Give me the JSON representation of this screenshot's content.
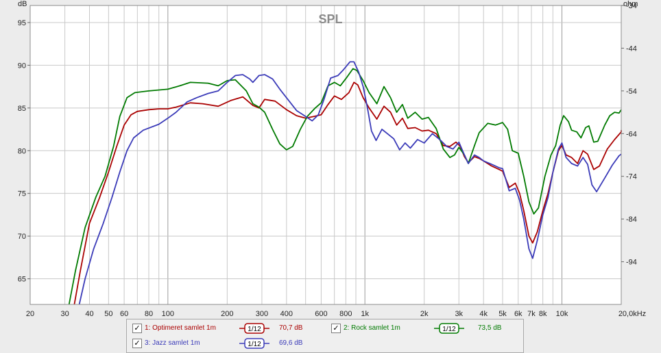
{
  "colors": {
    "background": "#ececec",
    "plot_bg": "#ffffff",
    "grid": "#c8c8c8",
    "grid_major": "#9a9a9a",
    "text": "#222222",
    "title": "#8a8a8a"
  },
  "legend": {
    "items": [
      {
        "checked": true,
        "label": "1: Optimeret samlet 1m",
        "smoothing": "1/12",
        "value": "70,7 dB",
        "color": "#aa0000"
      },
      {
        "checked": true,
        "label": "2: Rock samlet 1m",
        "smoothing": "1/12",
        "value": "73,5 dB",
        "color": "#007a00"
      },
      {
        "checked": true,
        "label": "3: Jazz samlet 1m",
        "smoothing": "1/12",
        "value": "69,6 dB",
        "color": "#3a3ab8"
      }
    ],
    "check_mark": "✓"
  },
  "chart_data": {
    "type": "line",
    "title": "SPL",
    "ylabel": "dB",
    "y2label": "ohm",
    "xscale": "log",
    "xlim": [
      20,
      20000
    ],
    "ylim": [
      62,
      97
    ],
    "y2lim": [
      -104,
      -34
    ],
    "x_ticks": [
      {
        "v": 20,
        "label": "20"
      },
      {
        "v": 30,
        "label": "30"
      },
      {
        "v": 40,
        "label": "40"
      },
      {
        "v": 50,
        "label": "50"
      },
      {
        "v": 60,
        "label": "60"
      },
      {
        "v": 80,
        "label": "80"
      },
      {
        "v": 100,
        "label": "100"
      },
      {
        "v": 200,
        "label": "200"
      },
      {
        "v": 300,
        "label": "300"
      },
      {
        "v": 400,
        "label": "400"
      },
      {
        "v": 600,
        "label": "600"
      },
      {
        "v": 800,
        "label": "800"
      },
      {
        "v": 1000,
        "label": "1k"
      },
      {
        "v": 2000,
        "label": "2k"
      },
      {
        "v": 3000,
        "label": "3k"
      },
      {
        "v": 4000,
        "label": "4k"
      },
      {
        "v": 5000,
        "label": "5k"
      },
      {
        "v": 6000,
        "label": "6k"
      },
      {
        "v": 7000,
        "label": "7k"
      },
      {
        "v": 8000,
        "label": "8k"
      },
      {
        "v": 10000,
        "label": "10k"
      },
      {
        "v": 20000,
        "label": "20,0kHz"
      }
    ],
    "x_minor_grid": [
      70,
      90,
      500,
      700,
      900,
      9000
    ],
    "y_ticks": [
      {
        "v": 95,
        "label": "95"
      },
      {
        "v": 90,
        "label": "90"
      },
      {
        "v": 85,
        "label": "85"
      },
      {
        "v": 80,
        "label": "80"
      },
      {
        "v": 75,
        "label": "75"
      },
      {
        "v": 70,
        "label": "70"
      },
      {
        "v": 65,
        "label": "65"
      }
    ],
    "y2_ticks": [
      {
        "v": -34,
        "label": "-34"
      },
      {
        "v": -44,
        "label": "-44"
      },
      {
        "v": -54,
        "label": "-54"
      },
      {
        "v": -64,
        "label": "-64"
      },
      {
        "v": -74,
        "label": "-74"
      },
      {
        "v": -84,
        "label": "-84"
      },
      {
        "v": -94,
        "label": "-94"
      }
    ],
    "grid": true,
    "series": [
      {
        "name": "1: Optimeret samlet 1m",
        "color": "#aa0000",
        "points": [
          [
            33.5,
            62
          ],
          [
            36,
            66
          ],
          [
            40,
            71.5
          ],
          [
            45,
            74.5
          ],
          [
            50,
            77.5
          ],
          [
            55,
            80.5
          ],
          [
            60,
            83
          ],
          [
            65,
            84.2
          ],
          [
            70,
            84.6
          ],
          [
            80,
            84.8
          ],
          [
            90,
            84.9
          ],
          [
            100,
            84.9
          ],
          [
            110,
            85.1
          ],
          [
            130,
            85.6
          ],
          [
            150,
            85.5
          ],
          [
            180,
            85.2
          ],
          [
            210,
            85.9
          ],
          [
            240,
            86.3
          ],
          [
            270,
            85.3
          ],
          [
            290,
            85
          ],
          [
            310,
            86
          ],
          [
            350,
            85.8
          ],
          [
            400,
            84.8
          ],
          [
            450,
            84.1
          ],
          [
            500,
            83.8
          ],
          [
            550,
            84
          ],
          [
            600,
            84.2
          ],
          [
            650,
            85.4
          ],
          [
            700,
            86.4
          ],
          [
            760,
            86
          ],
          [
            830,
            86.8
          ],
          [
            880,
            88
          ],
          [
            920,
            87.7
          ],
          [
            980,
            86.2
          ],
          [
            1050,
            85
          ],
          [
            1150,
            83.7
          ],
          [
            1250,
            85.2
          ],
          [
            1350,
            84.5
          ],
          [
            1450,
            83
          ],
          [
            1550,
            83.8
          ],
          [
            1650,
            82.6
          ],
          [
            1800,
            82.7
          ],
          [
            1950,
            82.3
          ],
          [
            2100,
            82.4
          ],
          [
            2300,
            82
          ],
          [
            2500,
            80.6
          ],
          [
            2700,
            80.5
          ],
          [
            2900,
            81
          ],
          [
            3050,
            80.5
          ],
          [
            3200,
            79.3
          ],
          [
            3350,
            78.6
          ],
          [
            3600,
            79.3
          ],
          [
            3800,
            79.1
          ],
          [
            4000,
            78.8
          ],
          [
            4400,
            78.2
          ],
          [
            4800,
            77.8
          ],
          [
            5000,
            77.6
          ],
          [
            5400,
            75.7
          ],
          [
            5800,
            76.2
          ],
          [
            6100,
            75
          ],
          [
            6400,
            73
          ],
          [
            6800,
            70
          ],
          [
            7100,
            69.2
          ],
          [
            7500,
            70.5
          ],
          [
            8000,
            73
          ],
          [
            8500,
            75
          ],
          [
            9000,
            77.5
          ],
          [
            9600,
            80
          ],
          [
            10000,
            80.6
          ],
          [
            10500,
            79.5
          ],
          [
            11200,
            79.2
          ],
          [
            12000,
            78.5
          ],
          [
            12800,
            80
          ],
          [
            13500,
            79.6
          ],
          [
            14500,
            77.8
          ],
          [
            15500,
            78.2
          ],
          [
            17000,
            80.2
          ],
          [
            18500,
            81.3
          ],
          [
            20000,
            82.2
          ],
          [
            20500,
            82.4
          ]
        ]
      },
      {
        "name": "2: Rock samlet 1m",
        "color": "#007a00",
        "points": [
          [
            31.5,
            62
          ],
          [
            34,
            66
          ],
          [
            38,
            71
          ],
          [
            43,
            74.5
          ],
          [
            48,
            77
          ],
          [
            53,
            80.5
          ],
          [
            57,
            84
          ],
          [
            62,
            86.2
          ],
          [
            68,
            86.8
          ],
          [
            80,
            87
          ],
          [
            100,
            87.2
          ],
          [
            115,
            87.6
          ],
          [
            130,
            88
          ],
          [
            160,
            87.9
          ],
          [
            180,
            87.6
          ],
          [
            200,
            88.2
          ],
          [
            220,
            88.3
          ],
          [
            250,
            87
          ],
          [
            270,
            85.5
          ],
          [
            290,
            85.1
          ],
          [
            310,
            84.5
          ],
          [
            340,
            82.5
          ],
          [
            370,
            80.8
          ],
          [
            400,
            80.1
          ],
          [
            430,
            80.5
          ],
          [
            470,
            82.5
          ],
          [
            510,
            84
          ],
          [
            560,
            85
          ],
          [
            600,
            85.6
          ],
          [
            650,
            87.6
          ],
          [
            700,
            88
          ],
          [
            750,
            87.6
          ],
          [
            810,
            88.6
          ],
          [
            870,
            89.6
          ],
          [
            910,
            89.4
          ],
          [
            980,
            88.2
          ],
          [
            1050,
            86.8
          ],
          [
            1150,
            85.5
          ],
          [
            1250,
            87.5
          ],
          [
            1350,
            86.2
          ],
          [
            1450,
            84.5
          ],
          [
            1550,
            85.4
          ],
          [
            1650,
            83.8
          ],
          [
            1800,
            84.5
          ],
          [
            1950,
            83.7
          ],
          [
            2100,
            83.9
          ],
          [
            2300,
            82.6
          ],
          [
            2500,
            80.2
          ],
          [
            2700,
            79.2
          ],
          [
            2850,
            79.5
          ],
          [
            3000,
            80.4
          ],
          [
            3200,
            79.5
          ],
          [
            3350,
            78.5
          ],
          [
            3600,
            80.6
          ],
          [
            3800,
            82.1
          ],
          [
            4200,
            83.2
          ],
          [
            4600,
            83
          ],
          [
            5000,
            83.3
          ],
          [
            5300,
            82.5
          ],
          [
            5600,
            80
          ],
          [
            6000,
            79.7
          ],
          [
            6400,
            77
          ],
          [
            6800,
            74
          ],
          [
            7200,
            72.6
          ],
          [
            7600,
            73.3
          ],
          [
            8200,
            77
          ],
          [
            8800,
            79.5
          ],
          [
            9300,
            80.6
          ],
          [
            9800,
            83
          ],
          [
            10200,
            84.1
          ],
          [
            10800,
            83.4
          ],
          [
            11200,
            82.4
          ],
          [
            11900,
            82.2
          ],
          [
            12500,
            81.5
          ],
          [
            13200,
            82.7
          ],
          [
            13700,
            82.9
          ],
          [
            14500,
            81
          ],
          [
            15200,
            81.1
          ],
          [
            16500,
            83
          ],
          [
            17500,
            84.1
          ],
          [
            18500,
            84.5
          ],
          [
            19500,
            84.4
          ],
          [
            20500,
            84.8
          ]
        ]
      },
      {
        "name": "3: Jazz samlet 1m",
        "color": "#3a3ab8",
        "points": [
          [
            35.5,
            62
          ],
          [
            38,
            65
          ],
          [
            42,
            68.5
          ],
          [
            47,
            71.5
          ],
          [
            52,
            74.5
          ],
          [
            57,
            77.5
          ],
          [
            62,
            80
          ],
          [
            67,
            81.5
          ],
          [
            75,
            82.4
          ],
          [
            90,
            83.1
          ],
          [
            100,
            83.8
          ],
          [
            110,
            84.5
          ],
          [
            125,
            85.7
          ],
          [
            140,
            86.2
          ],
          [
            160,
            86.7
          ],
          [
            180,
            87
          ],
          [
            200,
            88
          ],
          [
            220,
            88.8
          ],
          [
            240,
            88.9
          ],
          [
            260,
            88.4
          ],
          [
            270,
            88
          ],
          [
            290,
            88.8
          ],
          [
            310,
            88.9
          ],
          [
            340,
            88.4
          ],
          [
            370,
            87.2
          ],
          [
            400,
            86.2
          ],
          [
            450,
            84.7
          ],
          [
            500,
            84
          ],
          [
            540,
            83.5
          ],
          [
            580,
            84.2
          ],
          [
            620,
            86
          ],
          [
            670,
            88.5
          ],
          [
            730,
            88.8
          ],
          [
            780,
            89.5
          ],
          [
            840,
            90.4
          ],
          [
            880,
            90.4
          ],
          [
            930,
            89.2
          ],
          [
            980,
            87.5
          ],
          [
            1030,
            85
          ],
          [
            1080,
            82.3
          ],
          [
            1140,
            81.2
          ],
          [
            1220,
            82.5
          ],
          [
            1300,
            82
          ],
          [
            1400,
            81.4
          ],
          [
            1500,
            80.1
          ],
          [
            1600,
            80.9
          ],
          [
            1700,
            80.3
          ],
          [
            1850,
            81.3
          ],
          [
            2000,
            80.9
          ],
          [
            2200,
            82
          ],
          [
            2400,
            81.3
          ],
          [
            2600,
            80.5
          ],
          [
            2800,
            80.2
          ],
          [
            3000,
            81
          ],
          [
            3200,
            79.5
          ],
          [
            3350,
            78.5
          ],
          [
            3600,
            79.5
          ],
          [
            3800,
            79.2
          ],
          [
            4000,
            78.8
          ],
          [
            4400,
            78.4
          ],
          [
            4800,
            78
          ],
          [
            5000,
            77.9
          ],
          [
            5400,
            75.3
          ],
          [
            5800,
            75.6
          ],
          [
            6100,
            74.2
          ],
          [
            6400,
            72
          ],
          [
            6800,
            68.5
          ],
          [
            7100,
            67.4
          ],
          [
            7500,
            69.5
          ],
          [
            8000,
            72.5
          ],
          [
            8500,
            74.5
          ],
          [
            9000,
            77.5
          ],
          [
            9600,
            80.2
          ],
          [
            10000,
            80.9
          ],
          [
            10500,
            79.2
          ],
          [
            11200,
            78.5
          ],
          [
            12000,
            78.2
          ],
          [
            12800,
            79.2
          ],
          [
            13500,
            78.4
          ],
          [
            14200,
            76
          ],
          [
            15000,
            75.2
          ],
          [
            16500,
            76.8
          ],
          [
            18000,
            78.3
          ],
          [
            19500,
            79.4
          ],
          [
            20500,
            79.6
          ]
        ]
      }
    ]
  }
}
